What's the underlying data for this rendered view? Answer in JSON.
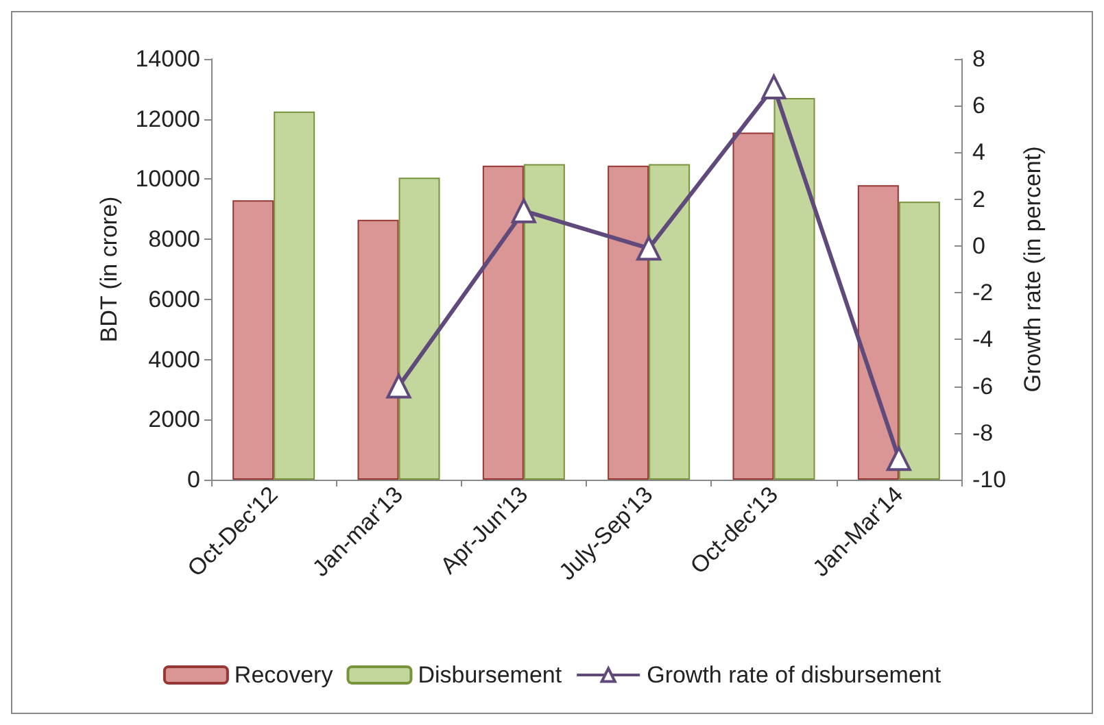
{
  "chart_data": {
    "type": "bar",
    "categories": [
      "Oct-Dec'12",
      "Jan-mar'13",
      "Apr-Jun'13",
      "July-Sep'13",
      "Oct-dec'13",
      "Jan-Mar'14"
    ],
    "series": [
      {
        "name": "Recovery",
        "color": "#d99694",
        "values": [
          9300,
          8650,
          10450,
          10450,
          11550,
          9800
        ]
      },
      {
        "name": "Disbursement",
        "color": "#c3d69b",
        "values": [
          12250,
          10050,
          10500,
          10500,
          12700,
          9250
        ]
      },
      {
        "name": "Growth rate of disbursement",
        "type": "line",
        "axis": "y2",
        "color": "#604a7b",
        "marker": "triangle",
        "values": [
          null,
          -6,
          1.5,
          -0.1,
          6.8,
          -9.1
        ]
      }
    ],
    "ylabel": "BDT (in crore)",
    "y2label": "Growth rate (in percent)",
    "ylim": [
      0,
      14000
    ],
    "yticks": [
      0,
      2000,
      4000,
      6000,
      8000,
      10000,
      12000,
      14000
    ],
    "y2lim": [
      -10,
      8
    ],
    "y2ticks": [
      -10,
      -8,
      -6,
      -4,
      -2,
      0,
      2,
      4,
      6,
      8
    ],
    "legend": "bottom",
    "grid": false
  }
}
